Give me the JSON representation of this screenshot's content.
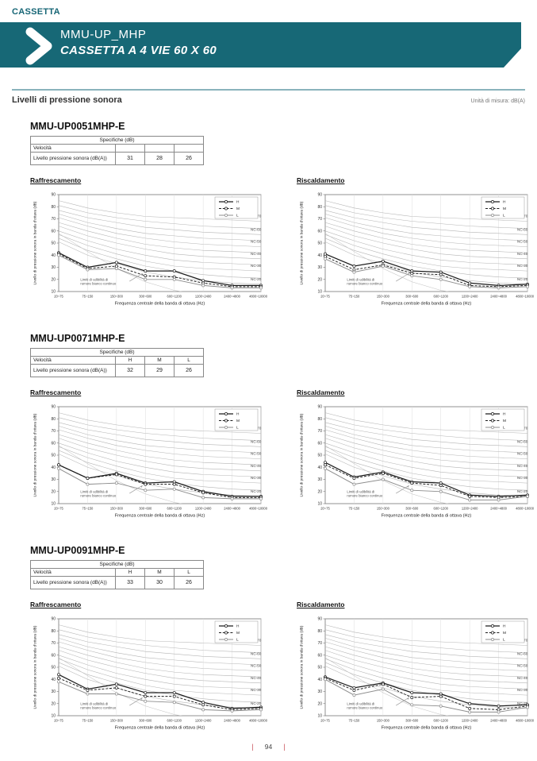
{
  "header": {
    "category": "CASSETTA",
    "banner_title": "MMU-UP_MHP",
    "banner_subtitle": "CASSETTA A 4 VIE 60 X 60"
  },
  "page_heading": {
    "title": "Livelli di pressione sonora",
    "unit_note": "Unità di misura: dB(A)"
  },
  "spec_table": {
    "header": "Specifiche (dB)",
    "speed_label": "Velocità",
    "level_label": "Livello pressione sonora (dB(A))"
  },
  "models": [
    {
      "name": "MMU-UP0051MHP-E",
      "speeds": [
        "",
        "",
        ""
      ],
      "levels": [
        "31",
        "28",
        "26"
      ]
    },
    {
      "name": "MMU-UP0071MHP-E",
      "speeds": [
        "H",
        "M",
        "L"
      ],
      "levels": [
        "32",
        "29",
        "26"
      ]
    },
    {
      "name": "MMU-UP0091MHP-E",
      "speeds": [
        "H",
        "M",
        "L"
      ],
      "levels": [
        "33",
        "30",
        "26"
      ]
    }
  ],
  "chart_common": {
    "type": "line",
    "categories": [
      "20~75",
      "75~150",
      "150~300",
      "300~600",
      "600~1200",
      "1200~2400",
      "2400~4800",
      "4800~10000"
    ],
    "xlabel": "Frequenza centrale della banda di ottava (Hz)",
    "ylabel": "Livello di pressione sonora in banda d'ottava (dB)",
    "ylim": [
      10,
      90
    ],
    "ytick_step": 10,
    "grid": "vertical-only",
    "legend": [
      "H",
      "M",
      "L"
    ],
    "legend_position": "top-right",
    "annotation": [
      "Limiti di udibilità di",
      "rumore bianco continuo"
    ],
    "nc_curves": [
      {
        "label": "NC-70",
        "labeled": true,
        "values": [
          85,
          79,
          75,
          72,
          71,
          70,
          69,
          68
        ]
      },
      {
        "label": "NC-65",
        "labeled": false,
        "values": [
          81,
          75,
          71,
          68,
          66,
          64,
          63,
          62
        ]
      },
      {
        "label": "NC-60",
        "labeled": true,
        "values": [
          77,
          71,
          67,
          63,
          61,
          59,
          58,
          57
        ]
      },
      {
        "label": "NC-55",
        "labeled": false,
        "values": [
          74,
          67,
          62,
          58,
          56,
          54,
          53,
          52
        ]
      },
      {
        "label": "NC-50",
        "labeled": true,
        "values": [
          71,
          64,
          58,
          54,
          51,
          49,
          48,
          47
        ]
      },
      {
        "label": "NC-45",
        "labeled": false,
        "values": [
          67,
          60,
          54,
          49,
          46,
          44,
          43,
          42
        ]
      },
      {
        "label": "NC-40",
        "labeled": true,
        "values": [
          64,
          56,
          50,
          45,
          41,
          39,
          38,
          37
        ]
      },
      {
        "label": "NC-35",
        "labeled": false,
        "values": [
          60,
          52,
          45,
          40,
          36,
          34,
          33,
          32
        ]
      },
      {
        "label": "NC-30",
        "labeled": true,
        "values": [
          57,
          48,
          41,
          35,
          31,
          29,
          28,
          27
        ]
      },
      {
        "label": "NC-25",
        "labeled": false,
        "values": [
          54,
          44,
          37,
          31,
          27,
          24,
          22,
          21
        ]
      },
      {
        "label": "NC-20",
        "labeled": true,
        "values": [
          51,
          40,
          33,
          26,
          22,
          19,
          17,
          16
        ]
      }
    ],
    "threshold_curve": [
      58,
      43,
      29,
      18,
      11,
      7,
      5,
      4
    ]
  },
  "chart_data": [
    {
      "model": "MMU-UP0051MHP-E",
      "title": "Raffrescamento",
      "series": [
        {
          "name": "H",
          "values": [
            42,
            30,
            34,
            27,
            27,
            19,
            15,
            15
          ]
        },
        {
          "name": "M",
          "values": [
            41,
            29,
            31,
            23,
            22,
            17,
            14,
            14
          ]
        },
        {
          "name": "L",
          "values": [
            40,
            28,
            29,
            20,
            20,
            15,
            13,
            13
          ]
        }
      ]
    },
    {
      "model": "MMU-UP0051MHP-E",
      "title": "Riscaldamento",
      "series": [
        {
          "name": "H",
          "values": [
            41,
            31,
            35,
            27,
            26,
            17,
            15,
            16
          ]
        },
        {
          "name": "M",
          "values": [
            39,
            28,
            32,
            25,
            24,
            15,
            14,
            15
          ]
        },
        {
          "name": "L",
          "values": [
            37,
            26,
            31,
            23,
            20,
            14,
            13,
            14
          ]
        }
      ]
    },
    {
      "model": "MMU-UP0071MHP-E",
      "title": "Raffrescamento",
      "series": [
        {
          "name": "H",
          "values": [
            42,
            31,
            35,
            27,
            28,
            20,
            16,
            16
          ]
        },
        {
          "name": "M",
          "values": [
            42,
            31,
            34,
            26,
            26,
            19,
            15,
            15
          ]
        },
        {
          "name": "L",
          "values": [
            39,
            26,
            27,
            21,
            22,
            15,
            14,
            14
          ]
        }
      ]
    },
    {
      "model": "MMU-UP0071MHP-E",
      "title": "Riscaldamento",
      "series": [
        {
          "name": "H",
          "values": [
            44,
            32,
            36,
            28,
            27,
            17,
            16,
            17
          ]
        },
        {
          "name": "M",
          "values": [
            42,
            31,
            35,
            27,
            25,
            16,
            15,
            16
          ]
        },
        {
          "name": "L",
          "values": [
            39,
            26,
            30,
            21,
            20,
            13,
            13,
            16
          ]
        }
      ]
    },
    {
      "model": "MMU-UP0091MHP-E",
      "title": "Raffrescamento",
      "series": [
        {
          "name": "H",
          "values": [
            44,
            32,
            36,
            29,
            29,
            21,
            16,
            17
          ]
        },
        {
          "name": "M",
          "values": [
            41,
            31,
            33,
            26,
            26,
            19,
            15,
            16
          ]
        },
        {
          "name": "L",
          "values": [
            38,
            28,
            28,
            22,
            21,
            15,
            14,
            15
          ]
        }
      ]
    },
    {
      "model": "MMU-UP0091MHP-E",
      "title": "Riscaldamento",
      "series": [
        {
          "name": "H",
          "values": [
            42,
            33,
            37,
            29,
            28,
            20,
            18,
            19
          ]
        },
        {
          "name": "M",
          "values": [
            41,
            31,
            36,
            25,
            26,
            16,
            15,
            18
          ]
        },
        {
          "name": "L",
          "values": [
            40,
            27,
            32,
            19,
            18,
            13,
            13,
            17
          ]
        }
      ]
    }
  ],
  "footer": {
    "page_number": "94"
  },
  "colors": {
    "brand_teal": "#176876",
    "rule_teal": "#8ab3bc",
    "footer_accent": "#c9515a",
    "nc_curve_gray": "#b5b5b5",
    "series_h": "#1c1c1c",
    "series_m": "#1c1c1c",
    "series_l": "#8d8d8d"
  }
}
